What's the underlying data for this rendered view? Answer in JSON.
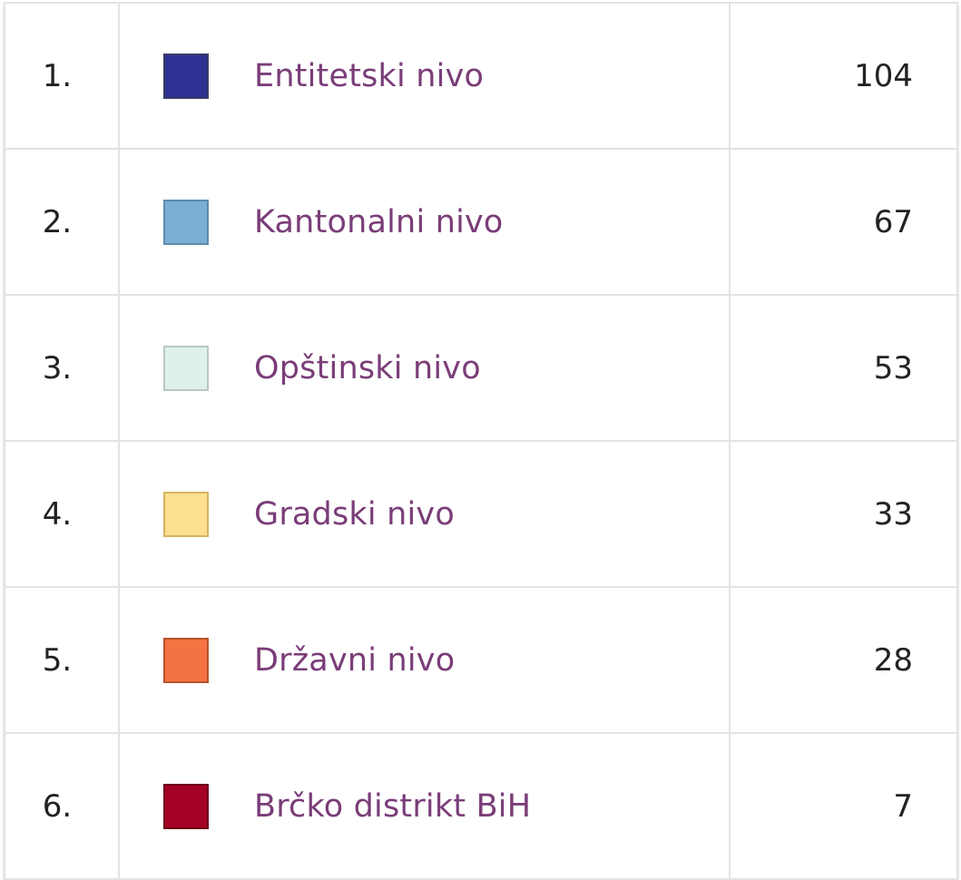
{
  "chart_data": {
    "type": "table",
    "rows": [
      {
        "rank": "1.",
        "label": "Entitetski nivo",
        "value": "104",
        "color": "#2e3192",
        "border": "#3a3a6a"
      },
      {
        "rank": "2.",
        "label": "Kantonalni nivo",
        "value": "67",
        "color": "#7bafd4",
        "border": "#5f8bb0"
      },
      {
        "rank": "3.",
        "label": "Opštinski nivo",
        "value": "53",
        "color": "#dff1ec",
        "border": "#b9c9c4"
      },
      {
        "rank": "4.",
        "label": "Gradski nivo",
        "value": "33",
        "color": "#fddf90",
        "border": "#d4b45e"
      },
      {
        "rank": "5.",
        "label": "Državni nivo",
        "value": "28",
        "color": "#f47342",
        "border": "#b8522c"
      },
      {
        "rank": "6.",
        "label": "Brčko distrikt BiH",
        "value": "7",
        "color": "#a50026",
        "border": "#6d0019"
      }
    ]
  }
}
